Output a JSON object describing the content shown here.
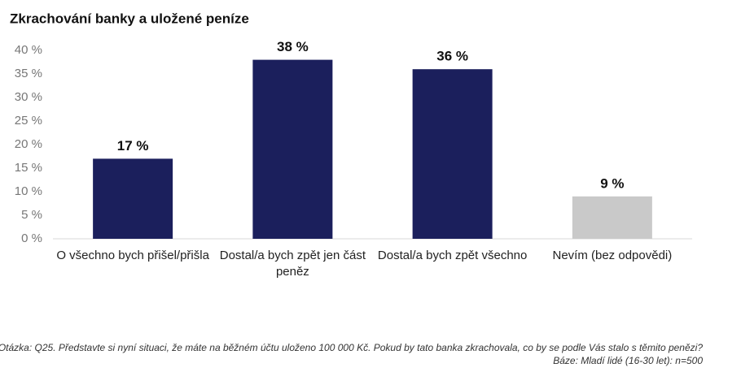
{
  "chart_data": {
    "type": "bar",
    "title": "Zkrachování banky a uložené peníze",
    "categories": [
      "O všechno bych přišel/přišla",
      "Dostal/a bych zpět jen část peněz",
      "Dostal/a bych zpět všechno",
      "Nevím (bez odpovědi)"
    ],
    "values": [
      17,
      38,
      36,
      9
    ],
    "value_labels": [
      "17 %",
      "38 %",
      "36 %",
      "9 %"
    ],
    "colors": [
      "#1b1f5c",
      "#1b1f5c",
      "#1b1f5c",
      "#c9c9c9"
    ],
    "ylim": [
      0,
      40
    ],
    "yticks": [
      {
        "value": 0,
        "label": "0 %"
      },
      {
        "value": 5,
        "label": "5 %"
      },
      {
        "value": 10,
        "label": "10 %"
      },
      {
        "value": 15,
        "label": "15 %"
      },
      {
        "value": 20,
        "label": "20 %"
      },
      {
        "value": 25,
        "label": "25 %"
      },
      {
        "value": 30,
        "label": "30 %"
      },
      {
        "value": 35,
        "label": "35 %"
      },
      {
        "value": 40,
        "label": "40 %"
      }
    ],
    "grid": false,
    "notes": [
      "Otázka: Q25. Představte si nyní situaci, že máte na běžném účtu uloženo 100 000 Kč. Pokud by tato banka zkrachovala, co by se podle Vás stalo s těmito penězi?",
      "Báze: Mladí lidé (16-30 let): n=500"
    ]
  }
}
